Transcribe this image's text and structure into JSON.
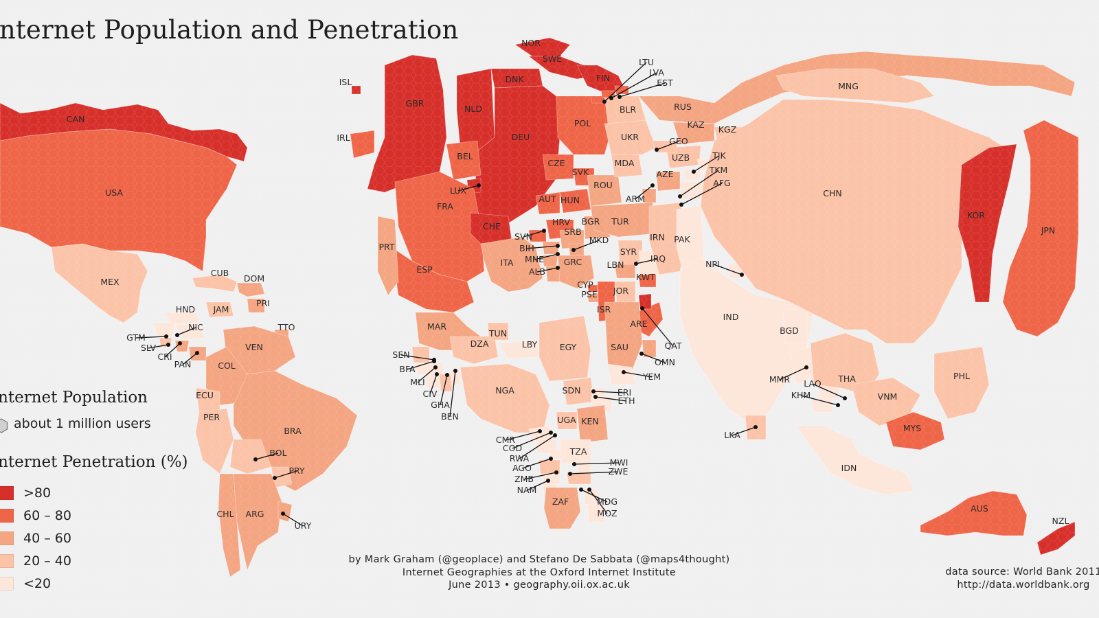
{
  "title": "Internet Population and Penetration",
  "legend": {
    "population_heading": "Internet Population",
    "population_unit": "about 1 million users",
    "penetration_heading": "Internet Penetration (%)",
    "classes": [
      {
        "label": ">80",
        "color": "#d7302b"
      },
      {
        "label": "60 – 80",
        "color": "#ef6548"
      },
      {
        "label": "40 – 60",
        "color": "#f4a582"
      },
      {
        "label": "20 – 40",
        "color": "#fbc3a8"
      },
      {
        "label": "<20",
        "color": "#fde6da"
      }
    ]
  },
  "credits": {
    "line1": "by Mark Graham (@geoplace) and Stefano De Sabbata (@maps4thought)",
    "line2": "Internet Geographies at the Oxford Internet Institute",
    "line3": "June 2013 • geography.oii.ox.ac.uk"
  },
  "source": {
    "line1": "data source: World Bank 2011",
    "line2": "http://data.worldbank.org"
  },
  "colors": {
    "background": "#f0f0f0",
    "c80": "#d7302b",
    "c60": "#ef6548",
    "c40": "#f4a582",
    "c20": "#fbc3a8",
    "c0": "#fde6da"
  },
  "countries": [
    {
      "code": "CAN",
      "class": "c80"
    },
    {
      "code": "USA",
      "class": "c60"
    },
    {
      "code": "MEX",
      "class": "c20"
    },
    {
      "code": "CUB",
      "class": "c20"
    },
    {
      "code": "DOM",
      "class": "c40"
    },
    {
      "code": "PRI",
      "class": "c40"
    },
    {
      "code": "JAM",
      "class": "c20"
    },
    {
      "code": "HND",
      "class": "c0"
    },
    {
      "code": "NIC",
      "class": "c0"
    },
    {
      "code": "GTM",
      "class": "c0"
    },
    {
      "code": "SLV",
      "class": "c20"
    },
    {
      "code": "CRI",
      "class": "c40"
    },
    {
      "code": "PAN",
      "class": "c40"
    },
    {
      "code": "TTO",
      "class": "c40"
    },
    {
      "code": "VEN",
      "class": "c40"
    },
    {
      "code": "COL",
      "class": "c40"
    },
    {
      "code": "ECU",
      "class": "c20"
    },
    {
      "code": "PER",
      "class": "c20"
    },
    {
      "code": "BRA",
      "class": "c40"
    },
    {
      "code": "BOL",
      "class": "c20"
    },
    {
      "code": "PRY",
      "class": "c20"
    },
    {
      "code": "CHL",
      "class": "c40"
    },
    {
      "code": "ARG",
      "class": "c40"
    },
    {
      "code": "URY",
      "class": "c40"
    },
    {
      "code": "ISL",
      "class": "c80"
    },
    {
      "code": "IRL",
      "class": "c60"
    },
    {
      "code": "GBR",
      "class": "c80"
    },
    {
      "code": "NOR",
      "class": "c80"
    },
    {
      "code": "SWE",
      "class": "c80"
    },
    {
      "code": "FIN",
      "class": "c80"
    },
    {
      "code": "DNK",
      "class": "c80"
    },
    {
      "code": "NLD",
      "class": "c80"
    },
    {
      "code": "DEU",
      "class": "c80"
    },
    {
      "code": "BEL",
      "class": "c60"
    },
    {
      "code": "LUX",
      "class": "c80"
    },
    {
      "code": "FRA",
      "class": "c60"
    },
    {
      "code": "CHE",
      "class": "c80"
    },
    {
      "code": "ESP",
      "class": "c60"
    },
    {
      "code": "PRT",
      "class": "c40"
    },
    {
      "code": "ITA",
      "class": "c40"
    },
    {
      "code": "AUT",
      "class": "c60"
    },
    {
      "code": "CZE",
      "class": "c60"
    },
    {
      "code": "POL",
      "class": "c60"
    },
    {
      "code": "SVK",
      "class": "c60"
    },
    {
      "code": "HUN",
      "class": "c60"
    },
    {
      "code": "SVN",
      "class": "c60"
    },
    {
      "code": "HRV",
      "class": "c60"
    },
    {
      "code": "BIH",
      "class": "c40"
    },
    {
      "code": "SRB",
      "class": "c40"
    },
    {
      "code": "MNE",
      "class": "c40"
    },
    {
      "code": "MKD",
      "class": "c40"
    },
    {
      "code": "ALB",
      "class": "c40"
    },
    {
      "code": "GRC",
      "class": "c40"
    },
    {
      "code": "BGR",
      "class": "c40"
    },
    {
      "code": "ROU",
      "class": "c40"
    },
    {
      "code": "MDA",
      "class": "c20"
    },
    {
      "code": "UKR",
      "class": "c20"
    },
    {
      "code": "BLR",
      "class": "c20"
    },
    {
      "code": "LTU",
      "class": "c60"
    },
    {
      "code": "LVA",
      "class": "c60"
    },
    {
      "code": "EST",
      "class": "c60"
    },
    {
      "code": "RUS",
      "class": "c40"
    },
    {
      "code": "KAZ",
      "class": "c40"
    },
    {
      "code": "KGZ",
      "class": "c20"
    },
    {
      "code": "UZB",
      "class": "c20"
    },
    {
      "code": "TJK",
      "class": "c0"
    },
    {
      "code": "TKM",
      "class": "c0"
    },
    {
      "code": "AFG",
      "class": "c0"
    },
    {
      "code": "GEO",
      "class": "c20"
    },
    {
      "code": "ARM",
      "class": "c40"
    },
    {
      "code": "AZE",
      "class": "c40"
    },
    {
      "code": "TUR",
      "class": "c40"
    },
    {
      "code": "CYP",
      "class": "c60"
    },
    {
      "code": "PSE",
      "class": "c40"
    },
    {
      "code": "ISR",
      "class": "c60"
    },
    {
      "code": "LBN",
      "class": "c40"
    },
    {
      "code": "SYR",
      "class": "c20"
    },
    {
      "code": "IRQ",
      "class": "c0"
    },
    {
      "code": "JOR",
      "class": "c20"
    },
    {
      "code": "KWT",
      "class": "c60"
    },
    {
      "code": "IRN",
      "class": "c20"
    },
    {
      "code": "ARE",
      "class": "c60"
    },
    {
      "code": "QAT",
      "class": "c80"
    },
    {
      "code": "SAU",
      "class": "c40"
    },
    {
      "code": "OMN",
      "class": "c40"
    },
    {
      "code": "YEM",
      "class": "c0"
    },
    {
      "code": "PAK",
      "class": "c0"
    },
    {
      "code": "NPL",
      "class": "c0"
    },
    {
      "code": "IND",
      "class": "c0"
    },
    {
      "code": "BGD",
      "class": "c0"
    },
    {
      "code": "LKA",
      "class": "c20"
    },
    {
      "code": "MMR",
      "class": "c0"
    },
    {
      "code": "LAO",
      "class": "c0"
    },
    {
      "code": "KHM",
      "class": "c0"
    },
    {
      "code": "THA",
      "class": "c20"
    },
    {
      "code": "VNM",
      "class": "c20"
    },
    {
      "code": "MYS",
      "class": "c60"
    },
    {
      "code": "IDN",
      "class": "c0"
    },
    {
      "code": "PHL",
      "class": "c20"
    },
    {
      "code": "MNG",
      "class": "c20"
    },
    {
      "code": "CHN",
      "class": "c20"
    },
    {
      "code": "KOR",
      "class": "c80"
    },
    {
      "code": "JPN",
      "class": "c60"
    },
    {
      "code": "AUS",
      "class": "c60"
    },
    {
      "code": "NZL",
      "class": "c80"
    },
    {
      "code": "MAR",
      "class": "c40"
    },
    {
      "code": "DZA",
      "class": "c20"
    },
    {
      "code": "TUN",
      "class": "c20"
    },
    {
      "code": "LBY",
      "class": "c0"
    },
    {
      "code": "EGY",
      "class": "c20"
    },
    {
      "code": "SEN",
      "class": "c20"
    },
    {
      "code": "MLI",
      "class": "c0"
    },
    {
      "code": "BFA",
      "class": "c0"
    },
    {
      "code": "CIV",
      "class": "c0"
    },
    {
      "code": "GHA",
      "class": "c20"
    },
    {
      "code": "BEN",
      "class": "c0"
    },
    {
      "code": "NGA",
      "class": "c20"
    },
    {
      "code": "CMR",
      "class": "c0"
    },
    {
      "code": "COD",
      "class": "c0"
    },
    {
      "code": "AGO",
      "class": "c20"
    },
    {
      "code": "RWA",
      "class": "c0"
    },
    {
      "code": "ZMB",
      "class": "c0"
    },
    {
      "code": "NAM",
      "class": "c0"
    },
    {
      "code": "SDN",
      "class": "c20"
    },
    {
      "code": "ERI",
      "class": "c0"
    },
    {
      "code": "ETH",
      "class": "c0"
    },
    {
      "code": "UGA",
      "class": "c20"
    },
    {
      "code": "KEN",
      "class": "c40"
    },
    {
      "code": "TZA",
      "class": "c0"
    },
    {
      "code": "MWI",
      "class": "c0"
    },
    {
      "code": "ZWE",
      "class": "c20"
    },
    {
      "code": "MDG",
      "class": "c0"
    },
    {
      "code": "MOZ",
      "class": "c0"
    },
    {
      "code": "ZAF",
      "class": "c40"
    }
  ]
}
